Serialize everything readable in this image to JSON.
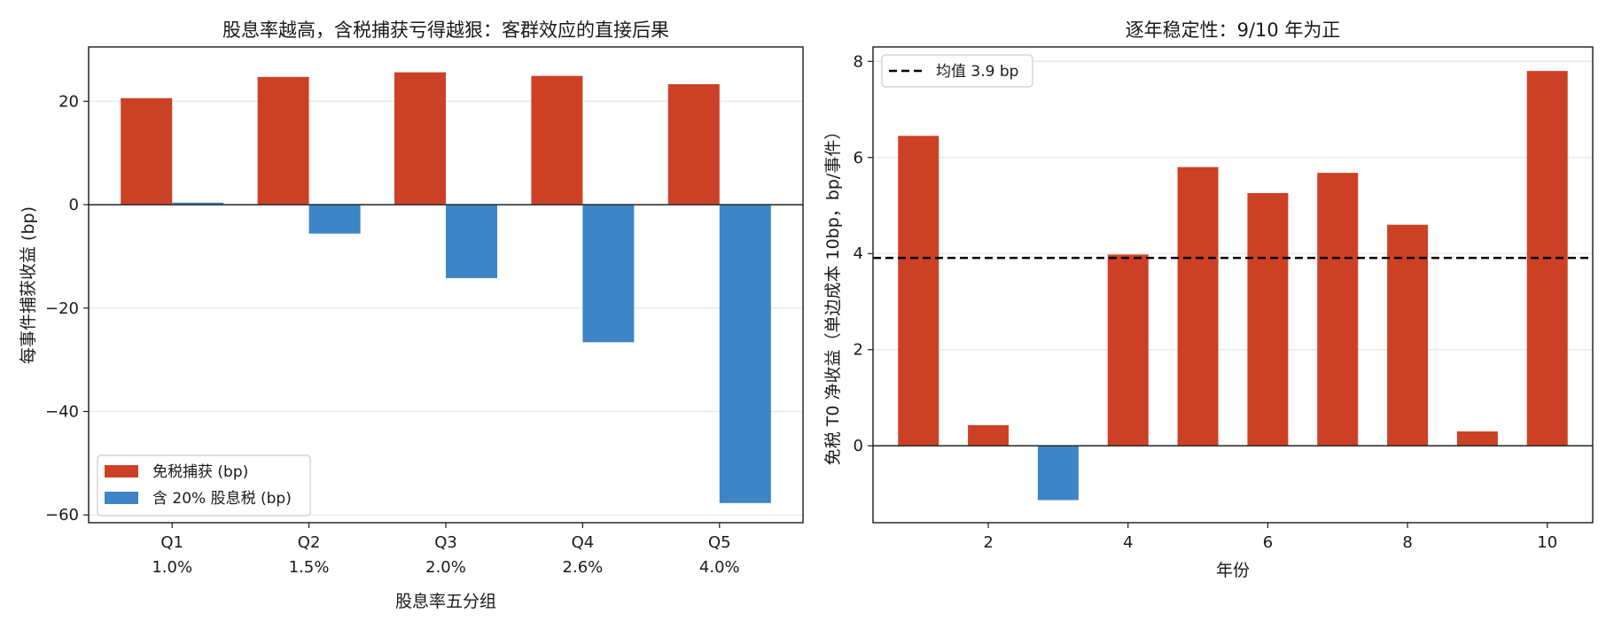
{
  "colors": {
    "red": "#cc4125",
    "blue": "#3d85c6",
    "mean_line": "#000000"
  },
  "chart_data": [
    {
      "type": "bar",
      "title": "股息率越高，含税捕获亏得越狠：客群效应的直接后果",
      "xlabel": "股息率五分组",
      "ylabel": "每事件捕获收益 (bp)",
      "categories": [
        "Q1",
        "Q2",
        "Q3",
        "Q4",
        "Q5"
      ],
      "category_sublabels": [
        "1.0%",
        "1.5%",
        "2.0%",
        "2.6%",
        "4.0%"
      ],
      "series": [
        {
          "name": "免税捕获 (bp)",
          "values": [
            20.6,
            24.7,
            25.6,
            24.9,
            23.3
          ]
        },
        {
          "name": "含 20% 股息税 (bp)",
          "values": [
            0.4,
            -5.6,
            -14.2,
            -26.6,
            -57.7
          ]
        }
      ],
      "ylim": [
        -61.5,
        30.5
      ],
      "yticks": [
        -60,
        -40,
        -20,
        0,
        20
      ],
      "grid": true,
      "legend": "lower-left"
    },
    {
      "type": "bar",
      "title": "逐年稳定性：9/10 年为正",
      "xlabel": "年份",
      "ylabel": "免税 T0 净收益（单边成本 10bp，bp/事件）",
      "x": [
        1,
        2,
        3,
        4,
        5,
        6,
        7,
        8,
        9,
        10
      ],
      "values": [
        6.45,
        0.43,
        -1.13,
        3.98,
        5.8,
        5.26,
        5.68,
        4.6,
        0.3,
        7.8
      ],
      "xticks": [
        2,
        4,
        6,
        8,
        10
      ],
      "xlim": [
        0.35,
        10.65
      ],
      "ylim": [
        -1.6,
        8.3
      ],
      "yticks": [
        0,
        2,
        4,
        6,
        8
      ],
      "mean": 3.91,
      "mean_label": "均值 3.9 bp",
      "grid": true,
      "legend": "top-left"
    }
  ]
}
